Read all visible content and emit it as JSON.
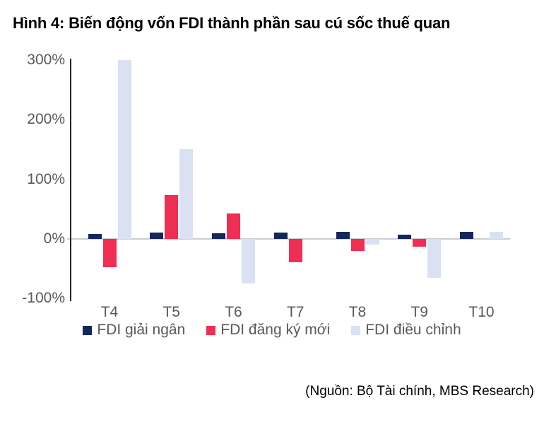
{
  "title": "Hình 4: Biến động vốn FDI thành phần sau cú sốc thuế quan",
  "source": "(Nguồn: Bộ Tài chính, MBS Research)",
  "colors": {
    "navy": "#14275C",
    "red": "#EE2E53",
    "light_blue": "#D9E1F2",
    "axis_label": "#595959",
    "axis_line": "#262626",
    "zero_line": "#C9CDD3"
  },
  "chart_data": {
    "type": "bar",
    "title": "Hình 4: Biến động vốn FDI thành phần sau cú sốc thuế quan",
    "categories": [
      "T4",
      "T5",
      "T6",
      "T7",
      "T8",
      "T9",
      "T10"
    ],
    "series": [
      {
        "id": "fdi-giai-ngan",
        "name": "FDI giải ngân",
        "color": "#14275C",
        "values": [
          8,
          10,
          9,
          10,
          12,
          7,
          11
        ]
      },
      {
        "id": "fdi-dang-ky-moi",
        "name": "FDI đăng ký mới",
        "color": "#EE2E53",
        "values": [
          -48,
          73,
          42,
          -40,
          -20,
          -13,
          0
        ]
      },
      {
        "id": "fdi-dieu-chinh",
        "name": "FDI điều chỉnh",
        "color": "#D9E1F2",
        "values": [
          300,
          150,
          -75,
          0,
          -10,
          -65,
          12
        ]
      }
    ],
    "unit": "%",
    "ylim": [
      -100,
      300
    ],
    "yticks": [
      {
        "v": 300,
        "label": "300%"
      },
      {
        "v": 200,
        "label": "200%"
      },
      {
        "v": 100,
        "label": "100%"
      },
      {
        "v": 0,
        "label": "0%"
      },
      {
        "v": -100,
        "label": "-100%"
      }
    ],
    "xlabel": "",
    "ylabel": "",
    "grid": false,
    "legend_position": "bottom"
  }
}
